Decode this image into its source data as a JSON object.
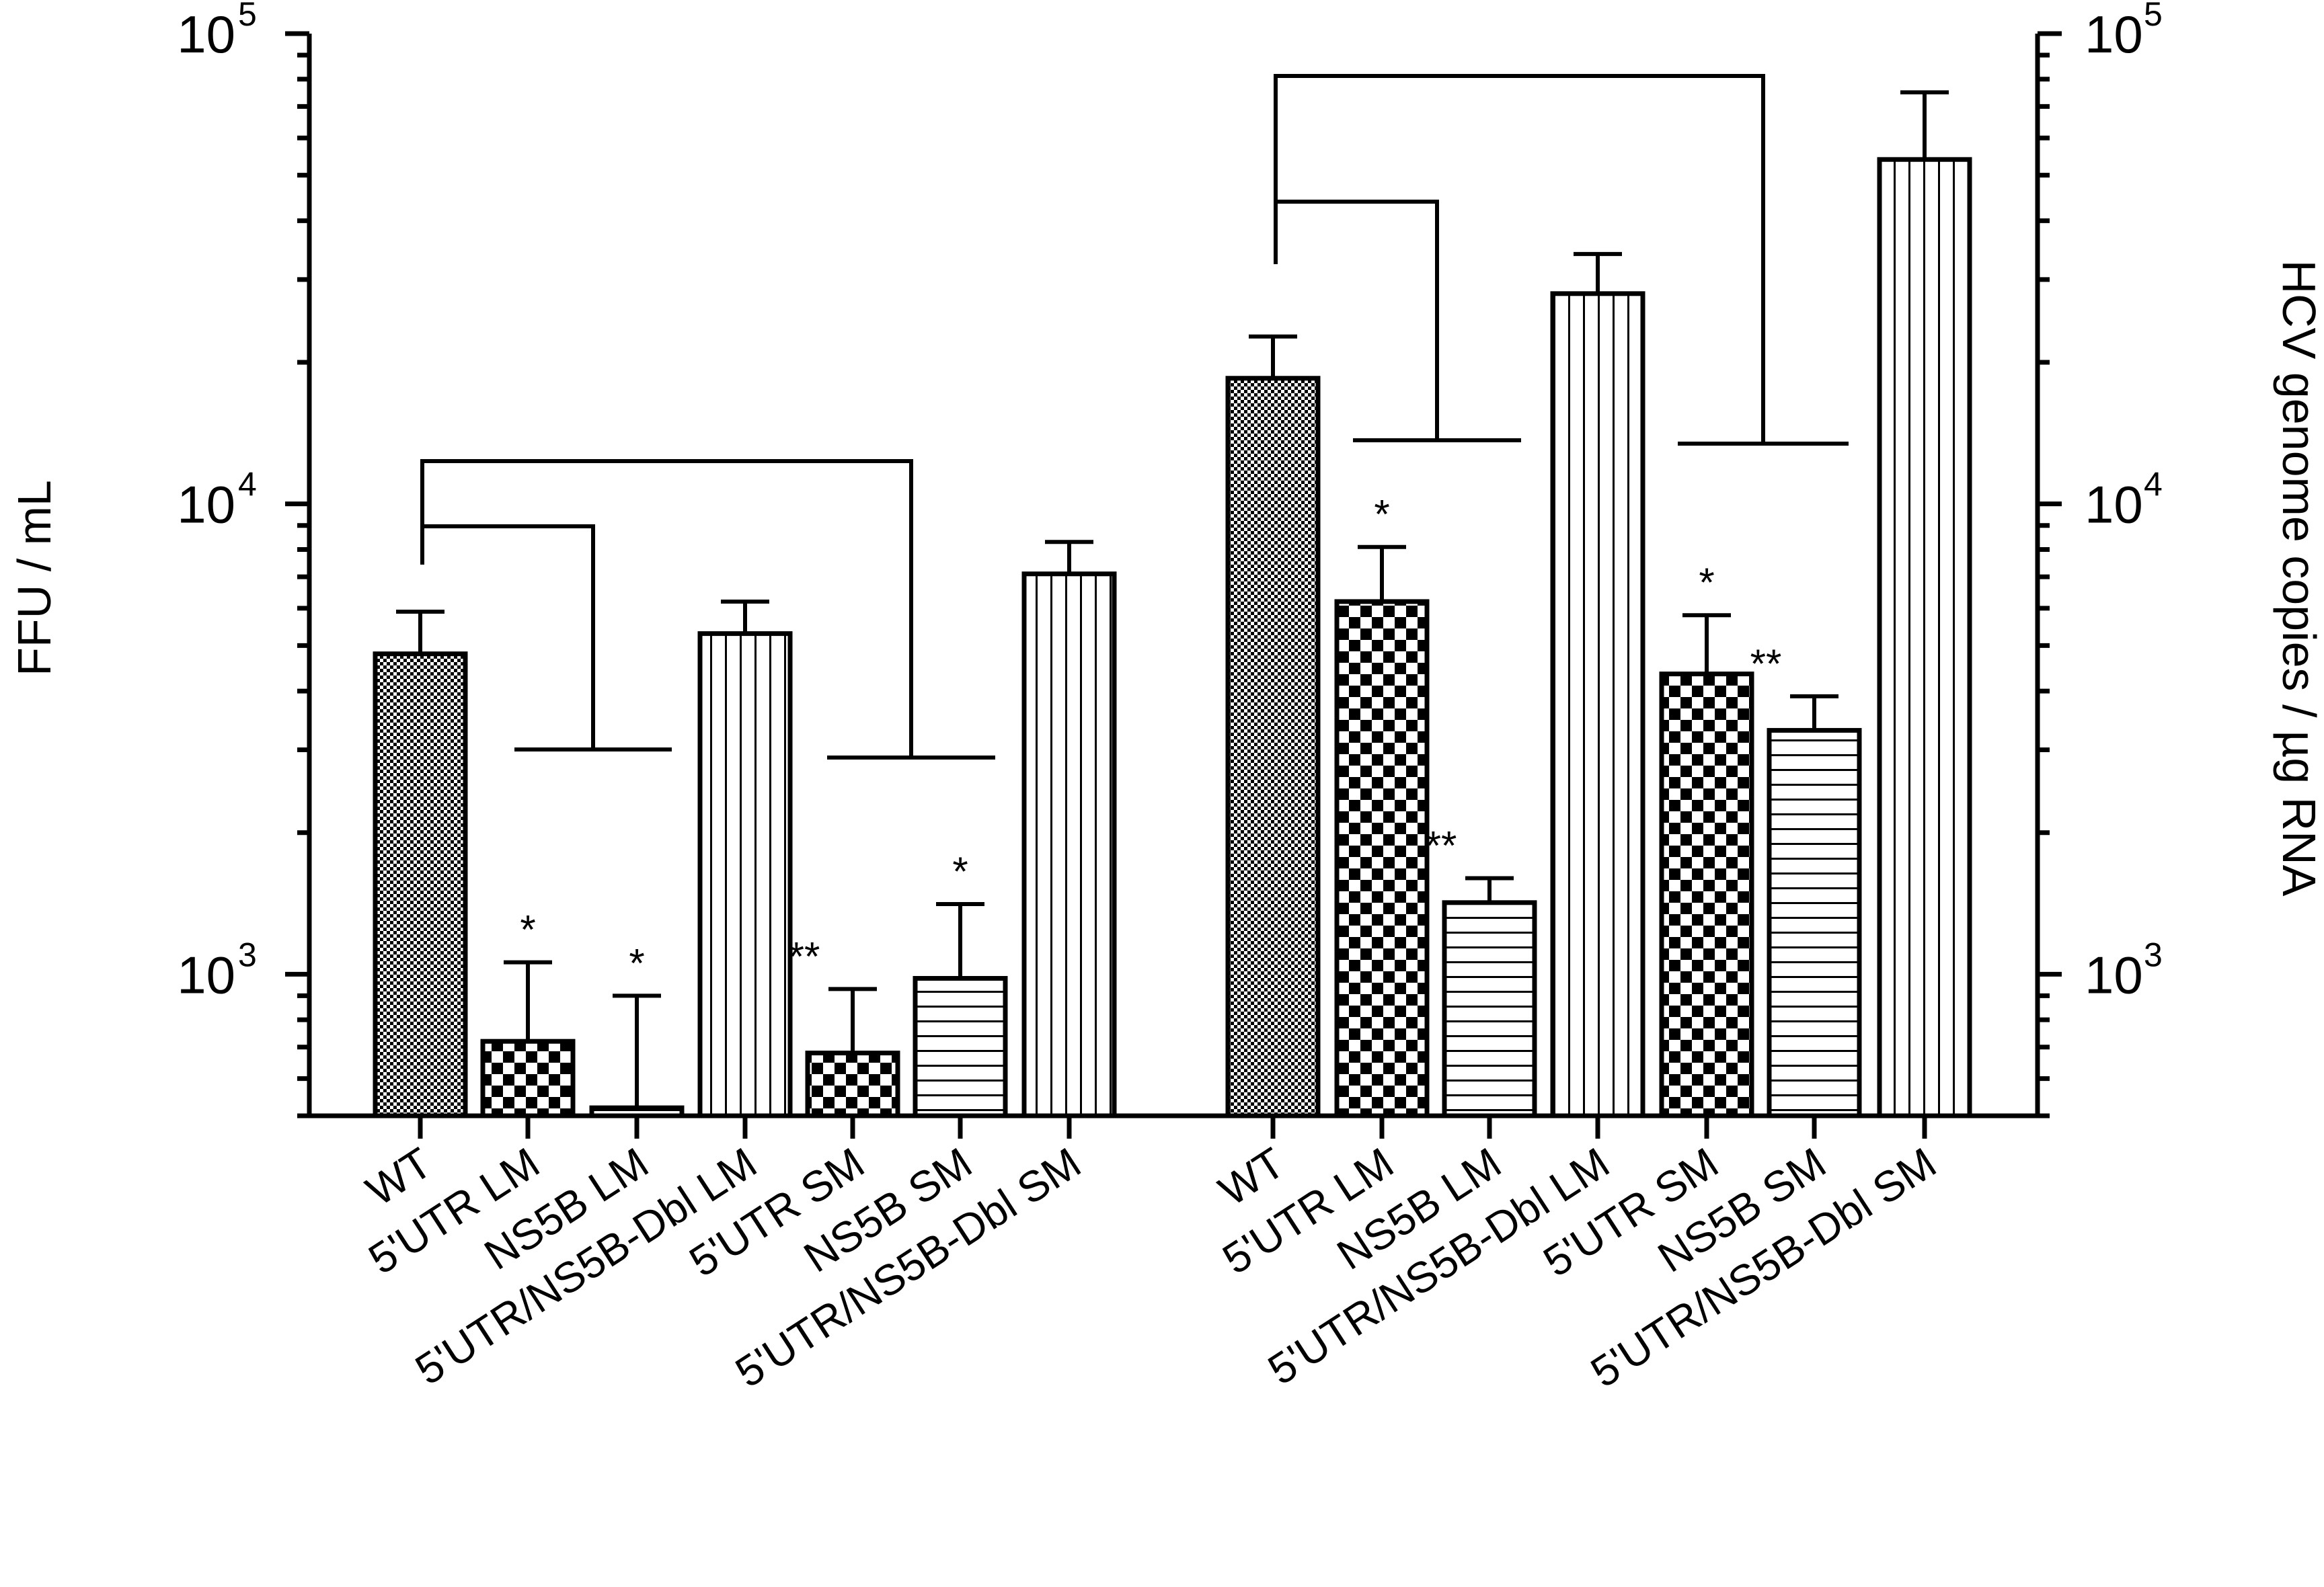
{
  "chart_data": {
    "type": "bar",
    "title": "",
    "yscale": "log",
    "ylim": [
      500,
      100000
    ],
    "y_ticks": [
      {
        "value": 1000,
        "base": "10",
        "exp": "3"
      },
      {
        "value": 10000,
        "base": "10",
        "exp": "4"
      },
      {
        "value": 100000,
        "base": "10",
        "exp": "5"
      }
    ],
    "ylabel_left": "FFU / mL",
    "ylabel_right": "HCV genome copies / µg RNA",
    "groups": [
      {
        "name": "FFU / mL",
        "axis": "left",
        "bars": [
          {
            "label": "WT",
            "value": 4800,
            "error": 1100,
            "pattern": "fine-check",
            "sig": ""
          },
          {
            "label": "5'UTR LM",
            "value": 720,
            "error": 340,
            "pattern": "coarse-check",
            "sig": "*"
          },
          {
            "label": "NS5B LM",
            "value": 520,
            "error": 380,
            "pattern": "horizontal",
            "sig": "*"
          },
          {
            "label": "5'UTR/NS5B-Dbl LM",
            "value": 5300,
            "error": 900,
            "pattern": "vertical",
            "sig": ""
          },
          {
            "label": "5'UTR SM",
            "value": 680,
            "error": 250,
            "pattern": "coarse-check",
            "sig": "**"
          },
          {
            "label": "NS5B SM",
            "value": 980,
            "error": 430,
            "pattern": "horizontal",
            "sig": "*"
          },
          {
            "label": "5'UTR/NS5B-Dbl SM",
            "value": 7100,
            "error": 1200,
            "pattern": "vertical",
            "sig": ""
          }
        ]
      },
      {
        "name": "HCV genome copies / µg RNA",
        "axis": "right",
        "bars": [
          {
            "label": "WT",
            "value": 18500,
            "error": 4200,
            "pattern": "fine-check",
            "sig": ""
          },
          {
            "label": "5'UTR LM",
            "value": 6200,
            "error": 1900,
            "pattern": "coarse-check",
            "sig": "*"
          },
          {
            "label": "NS5B LM",
            "value": 1420,
            "error": 180,
            "pattern": "horizontal",
            "sig": "**"
          },
          {
            "label": "5'UTR/NS5B-Dbl LM",
            "value": 28000,
            "error": 6000,
            "pattern": "vertical",
            "sig": ""
          },
          {
            "label": "5'UTR SM",
            "value": 4350,
            "error": 1450,
            "pattern": "coarse-check",
            "sig": "*"
          },
          {
            "label": "NS5B SM",
            "value": 3300,
            "error": 600,
            "pattern": "horizontal",
            "sig": "**"
          },
          {
            "label": "5'UTR/NS5B-Dbl SM",
            "value": 54000,
            "error": 21000,
            "pattern": "vertical",
            "sig": ""
          }
        ]
      }
    ]
  }
}
